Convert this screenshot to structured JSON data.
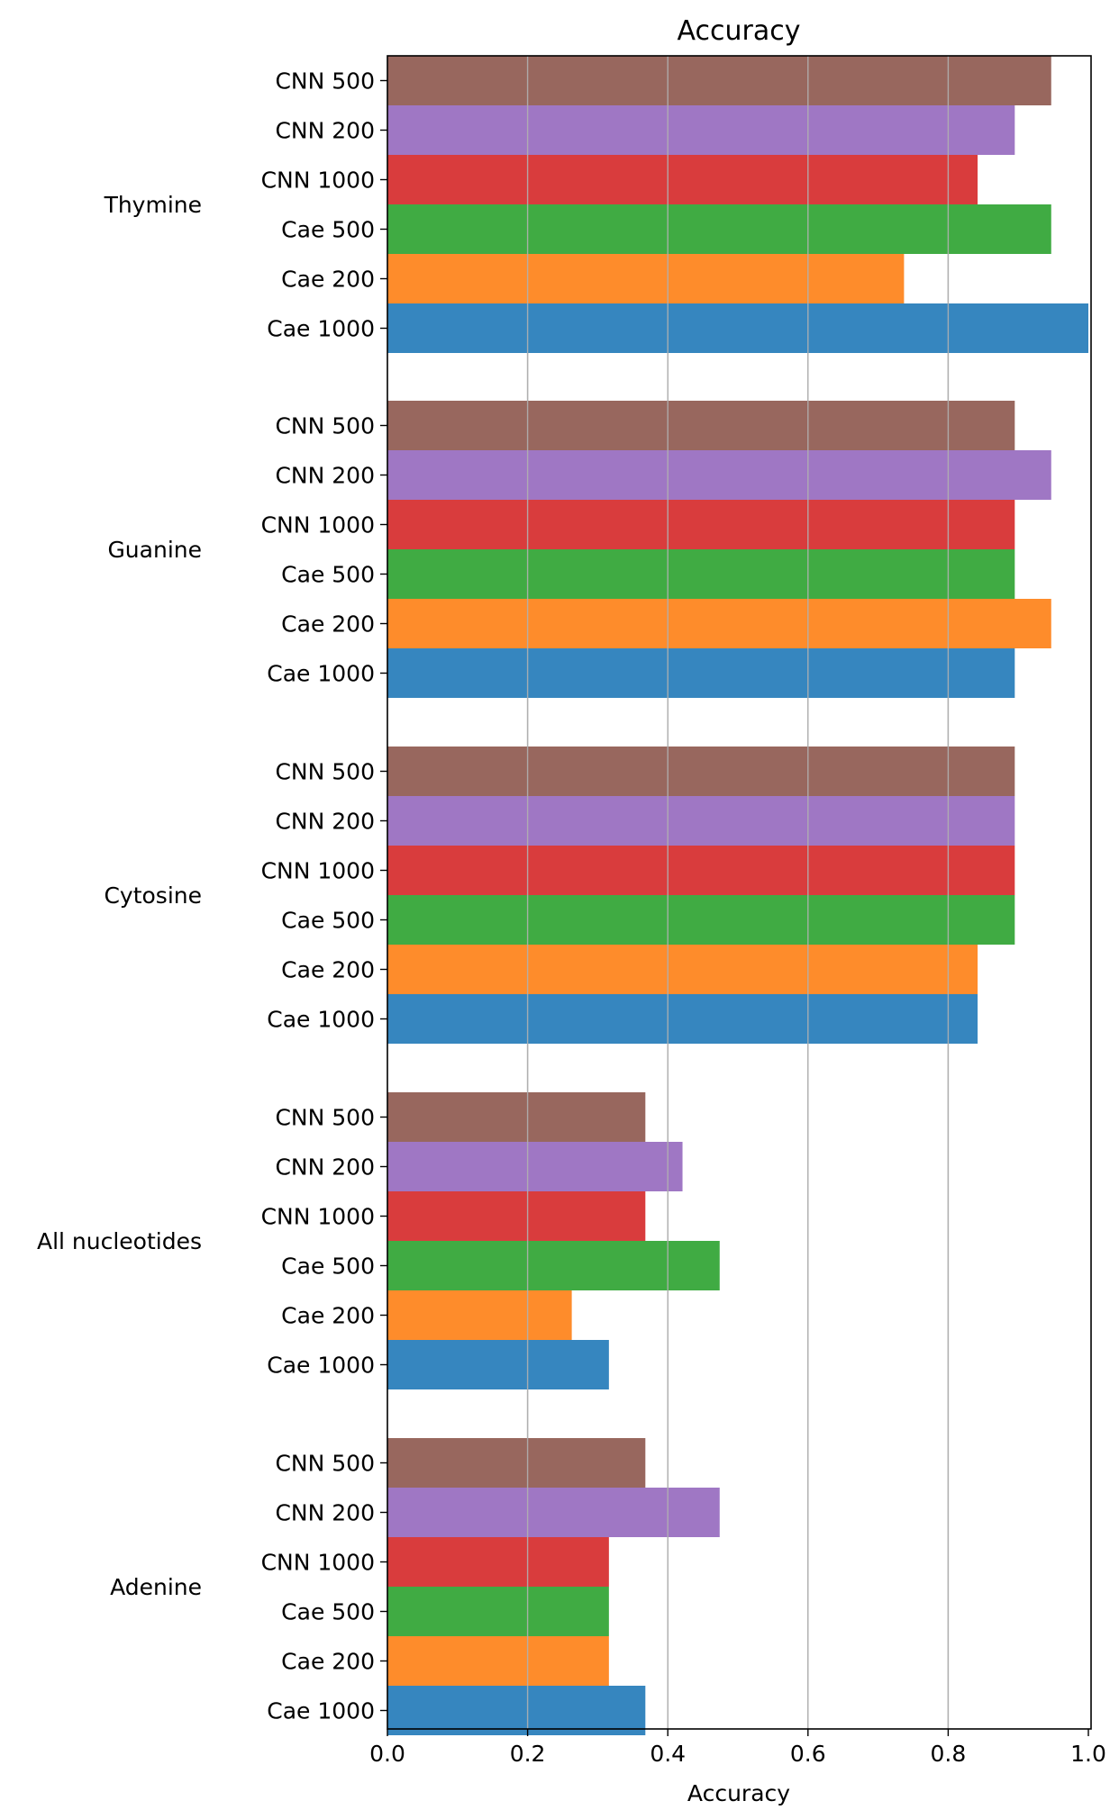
{
  "chart_data": {
    "type": "bar",
    "orientation": "horizontal",
    "title": "Accuracy",
    "xlabel": "Accuracy",
    "ylabel": "",
    "xlim": [
      0,
      1.0
    ],
    "xticks": [
      "0.0",
      "0.2",
      "0.4",
      "0.6",
      "0.8",
      "1.0"
    ],
    "grid": "x",
    "legend": "none",
    "series_colors": {
      "CNN 500": "#98675e",
      "CNN 200": "#9f77c4",
      "CNN 1000": "#d93c3d",
      "Cae 500": "#40ab43",
      "Cae 200": "#fe8c2b",
      "Cae 1000": "#3686bf"
    },
    "groups": [
      {
        "name": "Thymine",
        "bars": [
          {
            "label": "CNN 500",
            "value": 0.947
          },
          {
            "label": "CNN 200",
            "value": 0.895
          },
          {
            "label": "CNN 1000",
            "value": 0.842
          },
          {
            "label": "Cae 500",
            "value": 0.947
          },
          {
            "label": "Cae 200",
            "value": 0.737
          },
          {
            "label": "Cae 1000",
            "value": 1.0
          }
        ]
      },
      {
        "name": "Guanine",
        "bars": [
          {
            "label": "CNN 500",
            "value": 0.895
          },
          {
            "label": "CNN 200",
            "value": 0.947
          },
          {
            "label": "CNN 1000",
            "value": 0.895
          },
          {
            "label": "Cae 500",
            "value": 0.895
          },
          {
            "label": "Cae 200",
            "value": 0.947
          },
          {
            "label": "Cae 1000",
            "value": 0.895
          }
        ]
      },
      {
        "name": "Cytosine",
        "bars": [
          {
            "label": "CNN 500",
            "value": 0.895
          },
          {
            "label": "CNN 200",
            "value": 0.895
          },
          {
            "label": "CNN 1000",
            "value": 0.895
          },
          {
            "label": "Cae 500",
            "value": 0.895
          },
          {
            "label": "Cae 200",
            "value": 0.842
          },
          {
            "label": "Cae 1000",
            "value": 0.842
          }
        ]
      },
      {
        "name": "All nucleotides",
        "bars": [
          {
            "label": "CNN 500",
            "value": 0.368
          },
          {
            "label": "CNN 200",
            "value": 0.421
          },
          {
            "label": "CNN 1000",
            "value": 0.368
          },
          {
            "label": "Cae 500",
            "value": 0.474
          },
          {
            "label": "Cae 200",
            "value": 0.263
          },
          {
            "label": "Cae 1000",
            "value": 0.316
          }
        ]
      },
      {
        "name": "Adenine",
        "bars": [
          {
            "label": "CNN 500",
            "value": 0.368
          },
          {
            "label": "CNN 200",
            "value": 0.474
          },
          {
            "label": "CNN 1000",
            "value": 0.316
          },
          {
            "label": "Cae 500",
            "value": 0.316
          },
          {
            "label": "Cae 200",
            "value": 0.316
          },
          {
            "label": "Cae 1000",
            "value": 0.368
          }
        ]
      }
    ]
  }
}
